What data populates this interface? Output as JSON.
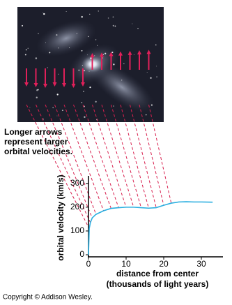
{
  "chart_data": {
    "type": "line",
    "annotation": [
      "Longer arrows",
      "represent larger",
      "orbital velocities."
    ],
    "x_label": [
      "distance from center",
      "(thousands of light years)"
    ],
    "y_label": "orbital velocity (km/s)",
    "x": [
      0,
      0.2,
      0.5,
      1,
      2,
      4,
      6,
      8,
      10,
      12,
      14,
      16,
      18,
      20,
      22,
      24,
      26,
      28,
      30,
      33
    ],
    "series": [
      {
        "color": "#29aee0",
        "values": [
          0,
          110,
          135,
          155,
          170,
          185,
          195,
          198,
          200,
          200,
          198,
          196,
          198,
          208,
          217,
          222,
          223,
          222,
          222,
          221
        ]
      }
    ],
    "xlim": [
      0,
      35
    ],
    "ylim": [
      0,
      320
    ],
    "xticks": [
      0,
      10,
      20,
      30
    ],
    "yticks": [
      0,
      100,
      200,
      300
    ]
  },
  "copyright": "Copyright © Addison Wesley."
}
